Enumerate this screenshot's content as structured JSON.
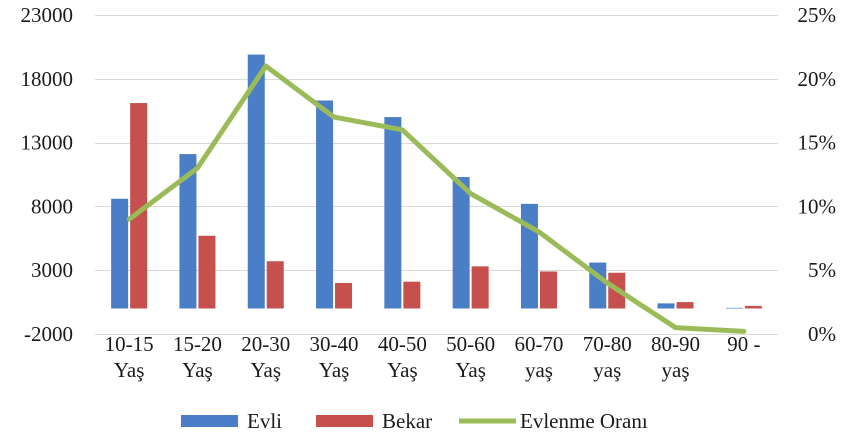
{
  "chart_data": {
    "type": "bar",
    "categories": [
      [
        "10-15",
        "Yaş"
      ],
      [
        "15-20",
        "Yaş"
      ],
      [
        "20-30",
        "Yaş"
      ],
      [
        "30-40",
        "Yaş"
      ],
      [
        "40-50",
        "Yaş"
      ],
      [
        "50-60",
        "Yaş"
      ],
      [
        "60-70",
        "yaş"
      ],
      [
        "70-80",
        "yaş"
      ],
      [
        "80-90",
        "yaş"
      ],
      [
        "90 -",
        ""
      ]
    ],
    "series": [
      {
        "name": "Evli",
        "type": "bar",
        "axis": "left",
        "color": "#4a7ec6",
        "values": [
          8600,
          12100,
          19900,
          16300,
          15000,
          10300,
          8200,
          3600,
          400,
          50
        ]
      },
      {
        "name": "Bekar",
        "type": "bar",
        "axis": "left",
        "color": "#c5504d",
        "values": [
          16100,
          5700,
          3700,
          2000,
          2100,
          3300,
          2900,
          2800,
          500,
          200
        ]
      },
      {
        "name": "Evlenme Oranı",
        "type": "line",
        "axis": "right",
        "color": "#9bbb59",
        "values": [
          9.0,
          13.0,
          21.0,
          17.0,
          16.0,
          11.0,
          8.0,
          4.0,
          0.5,
          0.2
        ]
      }
    ],
    "left_axis": {
      "ylim": [
        -2000,
        23000
      ],
      "ticks": [
        -2000,
        3000,
        8000,
        13000,
        18000,
        23000
      ],
      "tick_labels": [
        "-2000",
        "3000",
        "8000",
        "13000",
        "18000",
        "23000"
      ]
    },
    "right_axis": {
      "ylim": [
        0,
        25
      ],
      "ticks": [
        0,
        5,
        10,
        15,
        20,
        25
      ],
      "tick_labels": [
        "0%",
        "5%",
        "10%",
        "15%",
        "20%",
        "25%"
      ]
    },
    "grid": true,
    "legend_position": "bottom"
  }
}
